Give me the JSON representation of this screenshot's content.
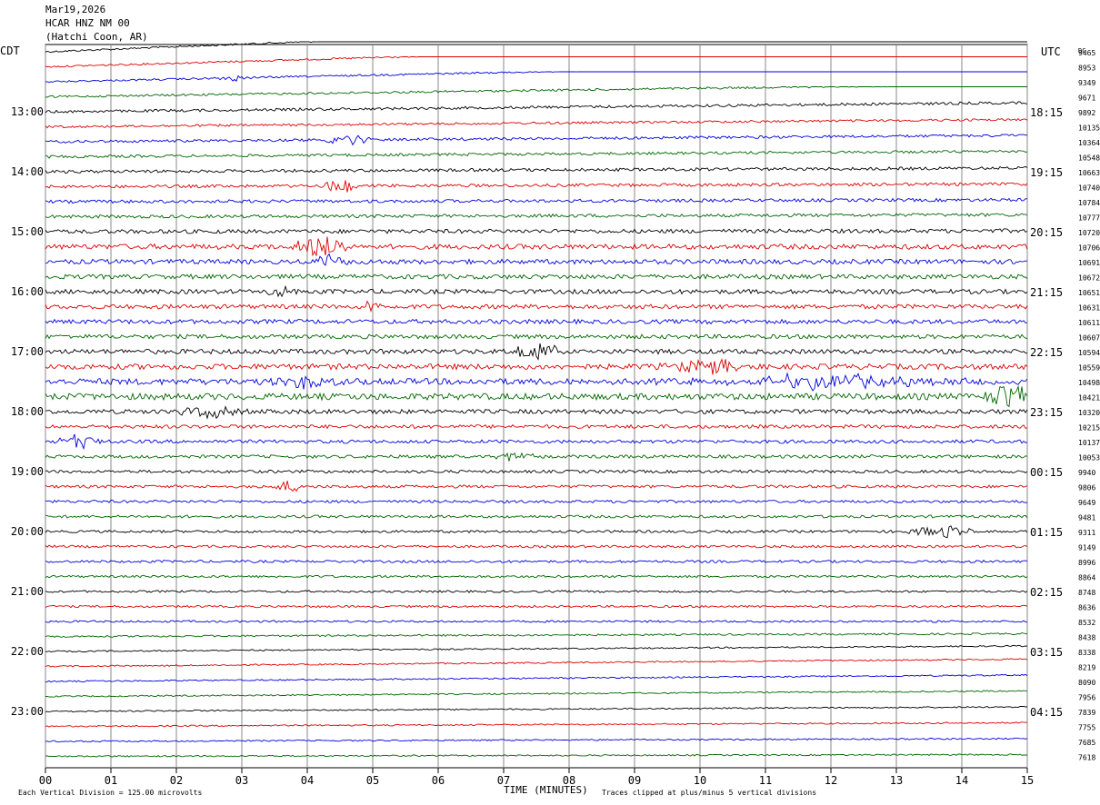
{
  "header": {
    "date": "Mar19,2026",
    "station": "HCAR HNZ NM 00",
    "location": "(Hatchi Coon, AR)"
  },
  "labels": {
    "left_tz": "CDT",
    "right_tz": "UTC",
    "dc": "DC",
    "x_axis_title": "TIME (MINUTES)",
    "scale_note": "Each Vertical Division =  125.00 microvolts",
    "clip_note": "Traces clipped at plus/minus 5 vertical divisions"
  },
  "colors": {
    "cycle": [
      "#000000",
      "#dd0000",
      "#0000dd",
      "#006600"
    ],
    "grid": "#888888"
  },
  "chart_data": {
    "type": "line",
    "title": "HCAR HNZ NM 00",
    "xlabel": "TIME (MINUTES)",
    "xlim": [
      0,
      15
    ],
    "x_ticks": [
      "00",
      "01",
      "02",
      "03",
      "04",
      "05",
      "06",
      "07",
      "08",
      "09",
      "10",
      "11",
      "12",
      "13",
      "14",
      "15"
    ],
    "trace_minutes": 15,
    "left_hour_labels": [
      "13:00",
      "14:00",
      "15:00",
      "16:00",
      "17:00",
      "18:00",
      "19:00",
      "20:00",
      "21:00",
      "22:00",
      "23:00"
    ],
    "right_hour_labels": [
      "18:15",
      "19:15",
      "20:15",
      "21:15",
      "22:15",
      "23:15",
      "00:15",
      "01:15",
      "02:15",
      "03:15",
      "04:15"
    ],
    "dc_offsets": [
      9465,
      8953,
      9349,
      9671,
      9892,
      10135,
      10364,
      10548,
      10663,
      10740,
      10784,
      10777,
      10720,
      10706,
      10691,
      10672,
      10651,
      10631,
      10611,
      10607,
      10594,
      10559,
      10498,
      10421,
      10320,
      10215,
      10137,
      10053,
      9940,
      9806,
      9649,
      9481,
      9311,
      9149,
      8996,
      8864,
      8748,
      8636,
      8532,
      8438,
      8338,
      8219,
      8090,
      7956,
      7839,
      7755,
      7685,
      7618
    ],
    "trace_amplitude": [
      1.0,
      1.0,
      1.0,
      1.2,
      1.5,
      1.3,
      1.5,
      1.5,
      1.7,
      1.7,
      1.8,
      1.8,
      2.2,
      2.8,
      2.6,
      2.5,
      2.5,
      2.4,
      2.4,
      2.3,
      2.6,
      3.0,
      3.4,
      3.5,
      2.4,
      2.0,
      1.9,
      1.8,
      1.6,
      1.6,
      1.5,
      1.5,
      1.4,
      1.4,
      1.4,
      1.3,
      1.2,
      1.2,
      1.1,
      1.0,
      0.8,
      0.8,
      0.8,
      0.8,
      0.8,
      0.8,
      0.8,
      0.8
    ],
    "trace_drift": [
      -42,
      -30,
      -22,
      -14,
      -10,
      -8,
      -7,
      -6,
      -4,
      -3,
      -2,
      -2,
      -1,
      0,
      0,
      0,
      0,
      0,
      0,
      0,
      0,
      0,
      0,
      0,
      0,
      0,
      0,
      0,
      0,
      0,
      0,
      0,
      0,
      0,
      0,
      0,
      0,
      0,
      0,
      -3,
      -6,
      -8,
      -7,
      -6,
      -5,
      -4,
      -3,
      -2
    ],
    "events": [
      {
        "trace": 2,
        "t": 2.9,
        "amp": 5,
        "dur": 0.2
      },
      {
        "trace": 6,
        "t": 4.6,
        "amp": 6,
        "dur": 0.3
      },
      {
        "trace": 9,
        "t": 4.5,
        "amp": 9,
        "dur": 0.2
      },
      {
        "trace": 13,
        "t": 4.2,
        "amp": 12,
        "dur": 0.4
      },
      {
        "trace": 14,
        "t": 4.3,
        "amp": 7,
        "dur": 0.3
      },
      {
        "trace": 16,
        "t": 3.6,
        "amp": 8,
        "dur": 0.2
      },
      {
        "trace": 17,
        "t": 5.0,
        "amp": 6,
        "dur": 0.2
      },
      {
        "trace": 20,
        "t": 7.5,
        "amp": 12,
        "dur": 0.3
      },
      {
        "trace": 21,
        "t": 10.1,
        "amp": 8,
        "dur": 0.5
      },
      {
        "trace": 22,
        "t": 11.8,
        "amp": 7,
        "dur": 1.5
      },
      {
        "trace": 22,
        "t": 4.0,
        "amp": 7,
        "dur": 0.4
      },
      {
        "trace": 23,
        "t": 14.8,
        "amp": 16,
        "dur": 0.4
      },
      {
        "trace": 24,
        "t": 2.5,
        "amp": 6,
        "dur": 0.4
      },
      {
        "trace": 26,
        "t": 0.5,
        "amp": 8,
        "dur": 0.3
      },
      {
        "trace": 27,
        "t": 7.2,
        "amp": 5,
        "dur": 0.3
      },
      {
        "trace": 29,
        "t": 3.7,
        "amp": 6,
        "dur": 0.2
      },
      {
        "trace": 32,
        "t": 13.7,
        "amp": 7,
        "dur": 0.4
      }
    ]
  }
}
